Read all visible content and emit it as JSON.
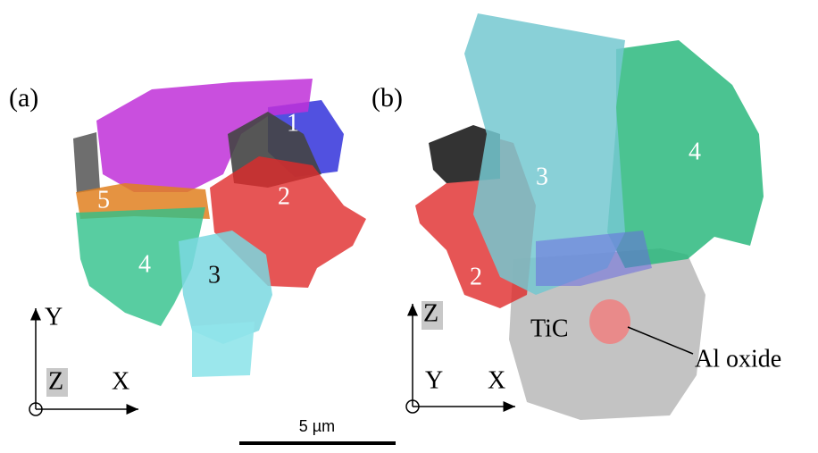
{
  "panels": [
    {
      "label": "(a)",
      "grains": [
        "1",
        "2",
        "3",
        "4",
        "5"
      ],
      "axes": {
        "up": "Y",
        "out": "Z",
        "right": "X"
      }
    },
    {
      "label": "(b)",
      "grains": [
        "3",
        "4",
        "2"
      ],
      "phases": [
        "TiC",
        "Al oxide"
      ],
      "axes": {
        "up": "Z",
        "out": "Y",
        "right": "X"
      }
    }
  ],
  "scale_bar": "5 µm"
}
